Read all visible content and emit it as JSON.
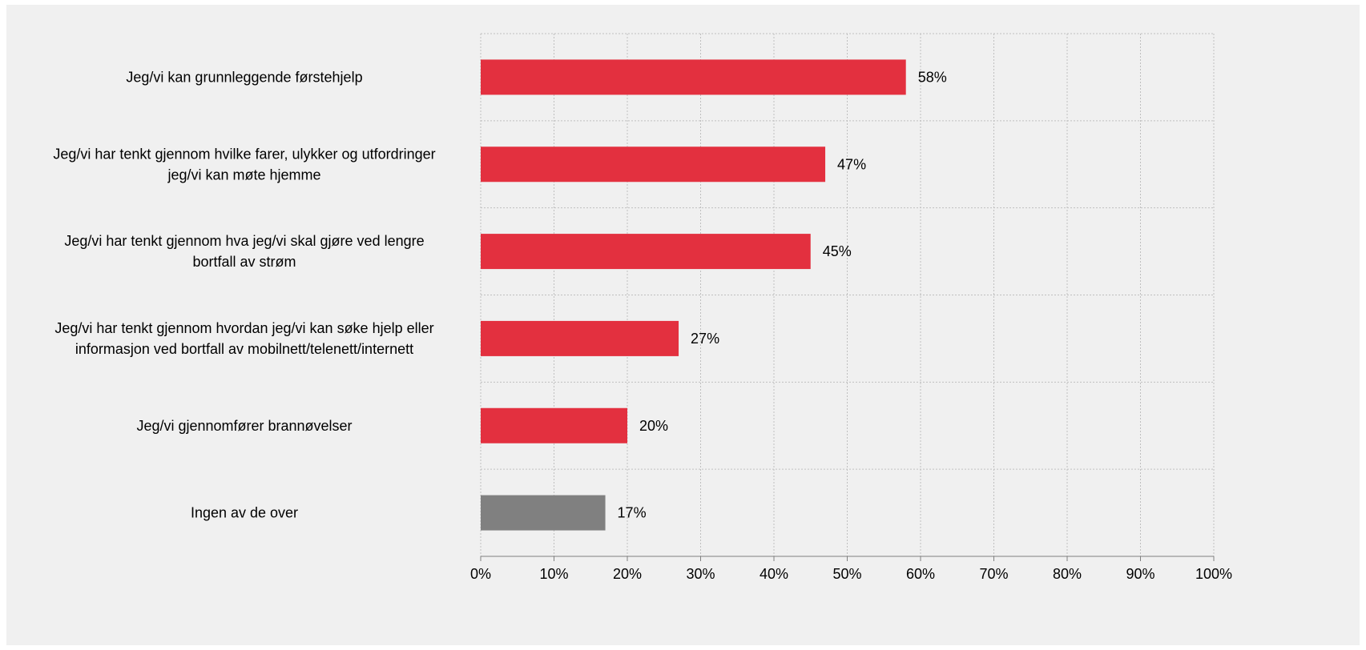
{
  "chart_data": {
    "type": "bar",
    "orientation": "horizontal",
    "categories": [
      [
        "Jeg/vi kan grunnleggende førstehjelp"
      ],
      [
        "Jeg/vi har tenkt gjennom hvilke farer, ulykker og utfordringer",
        "jeg/vi kan møte hjemme"
      ],
      [
        "Jeg/vi har tenkt gjennom hva jeg/vi skal gjøre ved lengre",
        "bortfall av strøm"
      ],
      [
        "Jeg/vi har tenkt gjennom hvordan jeg/vi kan søke hjelp eller",
        "informasjon ved bortfall av mobilnett/telenett/internett"
      ],
      [
        "Jeg/vi gjennomfører brannøvelser"
      ],
      [
        "Ingen av de over"
      ]
    ],
    "values": [
      58,
      47,
      45,
      27,
      20,
      17
    ],
    "data_labels": [
      "58%",
      "47%",
      "45%",
      "27%",
      "20%",
      "17%"
    ],
    "bar_colors": [
      "#e3303f",
      "#e3303f",
      "#e3303f",
      "#e3303f",
      "#e3303f",
      "#808080"
    ],
    "x_ticks": [
      "0%",
      "10%",
      "20%",
      "30%",
      "40%",
      "50%",
      "60%",
      "70%",
      "80%",
      "90%",
      "100%"
    ],
    "xlim": [
      0,
      100
    ],
    "title": "",
    "xlabel": "",
    "ylabel": "",
    "grid": true,
    "background": "#f0f0f0"
  }
}
